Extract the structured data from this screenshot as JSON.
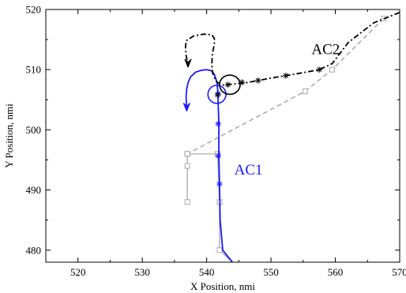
{
  "chart_data": {
    "type": "line",
    "xlabel": "X Position, nmi",
    "ylabel": "Y Position, nmi",
    "xlim": [
      515,
      570
    ],
    "ylim": [
      478,
      520
    ],
    "xticks": [
      520,
      530,
      540,
      550,
      560,
      570
    ],
    "yticks": [
      480,
      490,
      500,
      510,
      520
    ],
    "grid": false,
    "colors": {
      "ac1": "#1a1aff",
      "ac2": "#000000",
      "ac1_plan": "#a8a8a8",
      "ac2_plan": "#a8a8a8"
    },
    "labels": [
      {
        "text": "AC2",
        "x": 558.5,
        "y": 512.6,
        "color": "#000000"
      },
      {
        "text": "AC1",
        "x": 546.5,
        "y": 492.6,
        "color": "#1a1aff"
      }
    ],
    "series": [
      {
        "key": "ac1_plan",
        "style": "solid-square",
        "x": [
          544,
          542,
          542,
          541.7,
          541.7,
          537,
          537,
          537
        ],
        "y": [
          478,
          480,
          488,
          496,
          496,
          496,
          494,
          488
        ]
      },
      {
        "key": "ac2_plan",
        "style": "dashed-square",
        "x": [
          567.5,
          559.5,
          555.3,
          537,
          537
        ],
        "y": [
          518.5,
          510,
          506.4,
          496,
          496
        ]
      },
      {
        "key": "ac1",
        "style": "solid-star",
        "x": [
          544,
          542.5,
          542.1,
          542.0,
          541.9,
          541.9,
          541.8,
          541.75,
          541.7,
          541.6,
          541.4,
          541.2,
          540.8,
          540,
          539.2,
          538.3,
          537.5,
          537.1,
          536.9,
          536.8,
          536.85,
          536.9
        ],
        "y": [
          478,
          480,
          485,
          491,
          495.7,
          501,
          504,
          506,
          506.8,
          507.8,
          508.6,
          509.2,
          509.8,
          510.0,
          509.9,
          509.6,
          508.8,
          507.8,
          506.8,
          505.6,
          504.2,
          503.2
        ],
        "markers": [
          [
            542,
            491
          ],
          [
            541.8,
            495.7
          ],
          [
            541.8,
            501
          ],
          [
            541.8,
            506
          ]
        ]
      },
      {
        "key": "ac2",
        "style": "dashdot-star",
        "x": [
          570,
          566,
          562,
          559.5,
          557.5,
          555,
          552.3,
          550,
          548,
          546,
          544,
          542.8,
          542,
          541.4,
          540.9,
          540.8,
          540.9,
          541.2,
          541.2,
          540.8,
          539.5,
          538,
          536.8,
          536.7,
          536.8,
          537
        ],
        "y": [
          519.5,
          517.8,
          514.5,
          511,
          510,
          509.5,
          509,
          508.6,
          508.2,
          507.8,
          507.6,
          507.4,
          507.6,
          508.2,
          509.5,
          511,
          512.8,
          514.2,
          515.2,
          515.8,
          515.9,
          515.6,
          514.8,
          513.6,
          512.4,
          511.3
        ],
        "markers": [
          [
            557.5,
            510
          ],
          [
            552.3,
            509
          ],
          [
            548,
            508.2
          ],
          [
            545.5,
            507.9
          ],
          [
            543.3,
            507.5
          ],
          [
            541.7,
            505.8
          ]
        ]
      }
    ],
    "circles": [
      {
        "key": "ac1",
        "x": 541.6,
        "y": 505.9,
        "rx": 1.4,
        "ry": 1.5
      },
      {
        "key": "ac2",
        "x": 543.6,
        "y": 507.5,
        "rx": 1.6,
        "ry": 1.6
      }
    ],
    "arrows": [
      {
        "key": "ac1",
        "x": 536.9,
        "y": 503.1,
        "dx": 0,
        "dy": -1
      },
      {
        "key": "ac2",
        "x": 537.1,
        "y": 510.4,
        "dx": 0,
        "dy": -1
      }
    ]
  }
}
